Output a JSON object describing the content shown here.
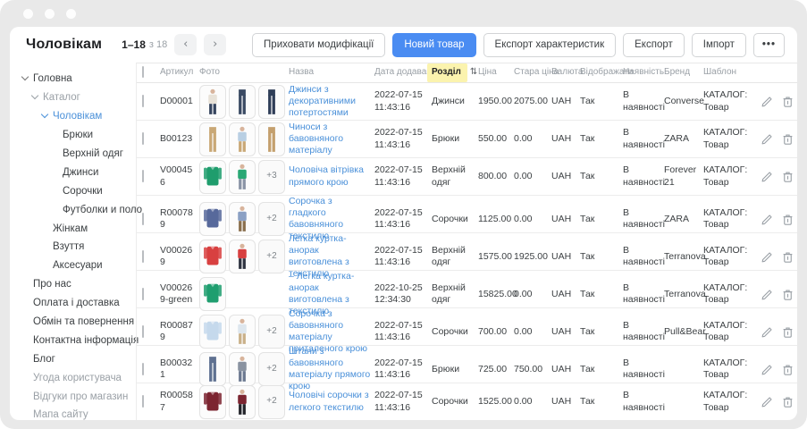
{
  "header": {
    "title": "Чоловікам",
    "pagination": {
      "range": "1–18",
      "of": "з 18",
      "prev": "‹",
      "next": "›"
    },
    "buttons": [
      {
        "name": "hide-modifications",
        "label": "Приховати модифікації",
        "style": "default"
      },
      {
        "name": "new-product",
        "label": "Новий товар",
        "style": "primary"
      },
      {
        "name": "export-characteristics",
        "label": "Експорт характеристик",
        "style": "default"
      },
      {
        "name": "export",
        "label": "Експорт",
        "style": "default"
      },
      {
        "name": "import",
        "label": "Імпорт",
        "style": "default"
      },
      {
        "name": "more-actions",
        "label": "•••",
        "style": "more"
      }
    ]
  },
  "sidebar": {
    "items": [
      {
        "name": "holovna",
        "label": "Головна",
        "level": 0,
        "expanded": true,
        "tone": "dark"
      },
      {
        "name": "kataloh",
        "label": "Каталог",
        "level": 1,
        "expanded": true,
        "tone": "muted"
      },
      {
        "name": "cholovikam",
        "label": "Чоловікам",
        "level": 2,
        "expanded": true,
        "tone": "active"
      },
      {
        "name": "bryuky",
        "label": "Брюки",
        "level": 3,
        "expanded": false,
        "tone": "dark"
      },
      {
        "name": "verkhniy-odyah",
        "label": "Верхній одяг",
        "level": 3,
        "expanded": false,
        "tone": "dark"
      },
      {
        "name": "dzhynsy",
        "label": "Джинси",
        "level": 3,
        "expanded": false,
        "tone": "dark"
      },
      {
        "name": "sorochky",
        "label": "Сорочки",
        "level": 3,
        "expanded": false,
        "tone": "dark"
      },
      {
        "name": "futbolky-i-polo",
        "label": "Футболки и поло",
        "level": 3,
        "expanded": false,
        "tone": "dark"
      },
      {
        "name": "zhinkam",
        "label": "Жінкам",
        "level": 2,
        "expanded": false,
        "tone": "dark"
      },
      {
        "name": "vzuttya",
        "label": "Взуття",
        "level": 2,
        "expanded": false,
        "tone": "dark"
      },
      {
        "name": "aksesuary",
        "label": "Аксесуари",
        "level": 2,
        "expanded": false,
        "tone": "dark"
      },
      {
        "name": "pro-nas",
        "label": "Про нас",
        "level": 0,
        "expanded": false,
        "tone": "dark"
      },
      {
        "name": "oplata-i-dostavka",
        "label": "Оплата і доставка",
        "level": 0,
        "expanded": false,
        "tone": "dark"
      },
      {
        "name": "obmin-ta-povernennya",
        "label": "Обмін та повернення",
        "level": 0,
        "expanded": false,
        "tone": "dark"
      },
      {
        "name": "kontaktna-informatsiya",
        "label": "Контактна інформація",
        "level": 0,
        "expanded": false,
        "tone": "dark"
      },
      {
        "name": "bloh",
        "label": "Блог",
        "level": 0,
        "expanded": false,
        "tone": "dark"
      },
      {
        "name": "uhoda-korystuvacha",
        "label": "Угода користувача",
        "level": 0,
        "expanded": false,
        "tone": "muted"
      },
      {
        "name": "vidhuky-pro-mahazyn",
        "label": "Відгуки про магазин",
        "level": 0,
        "expanded": false,
        "tone": "muted"
      },
      {
        "name": "mapa-saytu",
        "label": "Мапа сайту",
        "level": 0,
        "expanded": false,
        "tone": "muted"
      }
    ]
  },
  "table": {
    "columns": [
      "Артикул",
      "Фото",
      "Назва",
      "Дата додавання",
      "Розділ",
      "Ціна",
      "Стара ціна",
      "Валюта",
      "Відображати",
      "Наявність",
      "Бренд",
      "Шаблон"
    ],
    "sorted_column": "Розділ",
    "sort_icon": "⇅",
    "rows": [
      {
        "sku": "D00001",
        "photos": [
          {
            "t": "person",
            "c": "#e8e2d8",
            "c2": "#36455f"
          },
          {
            "t": "pants",
            "c": "#3a4a63"
          },
          {
            "t": "pants",
            "c": "#2f3e58"
          }
        ],
        "name": "Джинси з декоративними потертостями",
        "date": "2022-07-15",
        "time": "11:43:16",
        "section": "Джинси",
        "price": "1950.00",
        "old_price": "2075.00",
        "currency": "UAH",
        "display": "Так",
        "availability": "В наявності",
        "brand": "Converse",
        "template": [
          "КАТАЛОГ:",
          "Товар"
        ]
      },
      {
        "sku": "B00123",
        "photos": [
          {
            "t": "pants",
            "c": "#c9a876"
          },
          {
            "t": "person",
            "c": "#b9cfe3",
            "c2": "#c9a876"
          },
          {
            "t": "pants",
            "c": "#c4a06e"
          }
        ],
        "name": "Чиноси з бавовняного матеріалу",
        "date": "2022-07-15",
        "time": "11:43:16",
        "section": "Брюки",
        "price": "550.00",
        "old_price": "0.00",
        "currency": "UAH",
        "display": "Так",
        "availability": "В наявності",
        "brand": "ZARA",
        "template": [
          "КАТАЛОГ:",
          "Товар"
        ]
      },
      {
        "sku": "V000456",
        "photos": [
          {
            "t": "top",
            "c": "#1f9d6d"
          },
          {
            "t": "person",
            "c": "#2aa875",
            "c2": "#8a94a6"
          },
          {
            "t": "more",
            "label": "+3"
          }
        ],
        "name": "Чоловіча вітрівка прямого крою",
        "date": "2022-07-15",
        "time": "11:43:16",
        "section": "Верхній одяг",
        "price": "800.00",
        "old_price": "0.00",
        "currency": "UAH",
        "display": "Так",
        "availability": "В наявності",
        "brand": "Forever 21",
        "template": [
          "КАТАЛОГ:",
          "Товар"
        ]
      },
      {
        "sku": "R000789",
        "photos": [
          {
            "t": "top",
            "c": "#57699b"
          },
          {
            "t": "person",
            "c": "#8ba0c4",
            "c2": "#8a6f4d"
          },
          {
            "t": "more",
            "label": "+2"
          }
        ],
        "name": "Сорочка з гладкого бавовняного текстилю",
        "date": "2022-07-15",
        "time": "11:43:16",
        "section": "Сорочки",
        "price": "1125.00",
        "old_price": "0.00",
        "currency": "UAH",
        "display": "Так",
        "availability": "В наявності",
        "brand": "ZARA",
        "template": [
          "КАТАЛОГ:",
          "Товар"
        ]
      },
      {
        "sku": "V000269",
        "photos": [
          {
            "t": "top",
            "c": "#d84040"
          },
          {
            "t": "person",
            "c": "#d84040",
            "c2": "#2e3340"
          },
          {
            "t": "more",
            "label": "+2"
          }
        ],
        "name": "Легка куртка-анорак виготовлена з текстилю",
        "date": "2022-07-15",
        "time": "11:43:16",
        "section": "Верхній одяг",
        "price": "1575.00",
        "old_price": "1925.00",
        "currency": "UAH",
        "display": "Так",
        "availability": "В наявності",
        "brand": "Terranova",
        "template": [
          "КАТАЛОГ:",
          "Товар"
        ]
      },
      {
        "sku": "V000269-green",
        "photos": [
          {
            "t": "top",
            "c": "#1f9e6f"
          }
        ],
        "name": "– Легка куртка-анорак виготовлена з текстилю",
        "date": "2022-10-25",
        "time": "12:34:30",
        "section": "Верхній одяг",
        "price": "15825.00",
        "old_price": "0.00",
        "currency": "UAH",
        "display": "Так",
        "availability": "В наявності",
        "brand": "Terranova",
        "template": [
          "КАТАЛОГ:",
          "Товар"
        ]
      },
      {
        "sku": "R000879",
        "photos": [
          {
            "t": "top",
            "c": "#c5d9ec"
          },
          {
            "t": "person",
            "c": "#dde6ee",
            "c2": "#c9b089"
          },
          {
            "t": "more",
            "label": "+2"
          }
        ],
        "name": "Сорочка з бавовняного матеріалу приталеного крою",
        "date": "2022-07-15",
        "time": "11:43:16",
        "section": "Сорочки",
        "price": "700.00",
        "old_price": "0.00",
        "currency": "UAH",
        "display": "Так",
        "availability": "В наявності",
        "brand": "Pull&Bear",
        "template": [
          "КАТАЛОГ:",
          "Товар"
        ]
      },
      {
        "sku": "B000321",
        "photos": [
          {
            "t": "pants",
            "c": "#5f7191"
          },
          {
            "t": "person",
            "c": "#8a93a1",
            "c2": "#6b7890"
          },
          {
            "t": "more",
            "label": "+2"
          }
        ],
        "name": "Штани з бавовняного матеріалу прямого крою",
        "date": "2022-07-15",
        "time": "11:43:16",
        "section": "Брюки",
        "price": "725.00",
        "old_price": "750.00",
        "currency": "UAH",
        "display": "Так",
        "availability": "В наявності",
        "brand": "",
        "template": [
          "КАТАЛОГ:",
          "Товар"
        ]
      },
      {
        "sku": "R000587",
        "photos": [
          {
            "t": "top",
            "c": "#7c2531"
          },
          {
            "t": "person",
            "c": "#7c2531",
            "c2": "#23242a"
          },
          {
            "t": "more",
            "label": "+2"
          }
        ],
        "name": "Чоловічі сорочки з легкого текстилю",
        "date": "2022-07-15",
        "time": "11:43:16",
        "section": "Сорочки",
        "price": "1525.00",
        "old_price": "0.00",
        "currency": "UAH",
        "display": "Так",
        "availability": "В наявності",
        "brand": "",
        "template": [
          "КАТАЛОГ:",
          "Товар"
        ]
      }
    ]
  },
  "colors": {
    "primary_button": "#4a8cf2",
    "link": "#4a90d9",
    "sort_highlight": "#fbf3ae",
    "window_chrome": "#e9e9e9"
  }
}
